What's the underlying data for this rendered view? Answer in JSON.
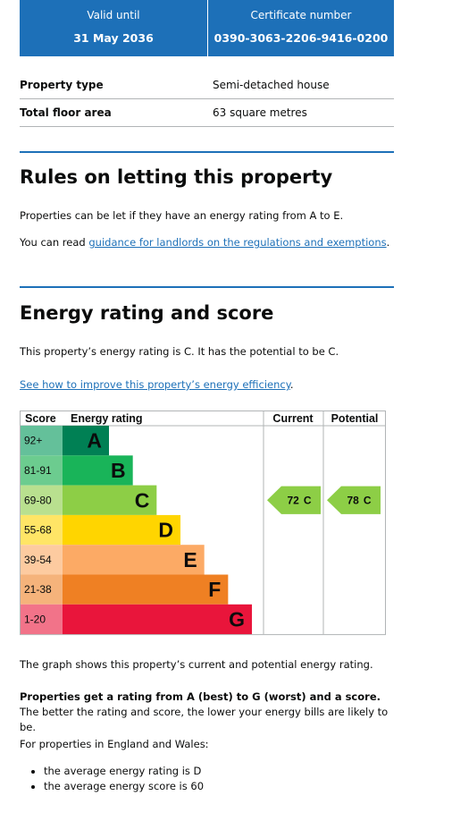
{
  "header": {
    "valid_until_label": "Valid until",
    "valid_until": "31 May 2036",
    "certificate_label": "Certificate number",
    "certificate_number": "0390-3063-2206-9416-0200"
  },
  "summary": {
    "rows": [
      [
        "Property type",
        "Semi-detached house"
      ],
      [
        "Total floor area",
        "63 square metres"
      ]
    ]
  },
  "letting": {
    "heading": "Rules on letting this property",
    "paragraph": "Properties can be let if they have an energy rating from A to E.",
    "link_prefix": "You can read ",
    "link": "guidance for landlords on the regulations and exemptions",
    "link_suffix": "."
  },
  "energy": {
    "heading": "Energy rating and score",
    "paragraph": "This property’s energy rating is C. It has the potential to be C.",
    "link": "See how to improve this property’s energy efficiency",
    "link_suffix": ".",
    "graph": {
      "headers": [
        "Score",
        "Energy rating",
        "Current",
        "Potential"
      ],
      "bands": [
        {
          "score": "92+",
          "letter": "A"
        },
        {
          "score": "81-91",
          "letter": "B"
        },
        {
          "score": "69-80",
          "letter": "C"
        },
        {
          "score": "55-68",
          "letter": "D"
        },
        {
          "score": "39-54",
          "letter": "E"
        },
        {
          "score": "21-38",
          "letter": "F"
        },
        {
          "score": "1-20",
          "letter": "G"
        }
      ],
      "current": {
        "score": 72,
        "letter": "C"
      },
      "potential": {
        "score": 78,
        "letter": "C"
      }
    },
    "graph_note": "The graph shows this property’s current and potential energy rating.",
    "rating_bold": "Properties get a rating from A (best) to G (worst) and a score.",
    "rating_rest": " The better the rating and score, the lower your energy bills are likely to be.",
    "average_intro": "For properties in England and Wales:",
    "averages": [
      "the average energy rating is D",
      "the average energy score is 60"
    ]
  }
}
